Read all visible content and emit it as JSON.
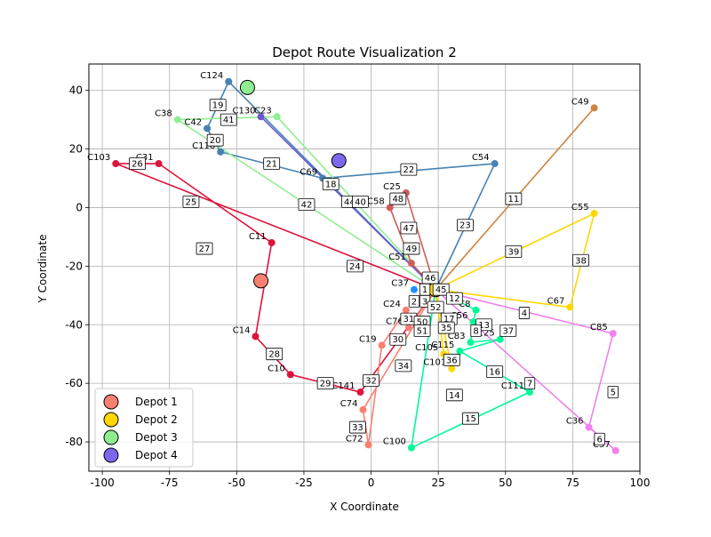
{
  "chart_data": {
    "type": "scatter",
    "title": "Depot Route Visualization 2",
    "xlabel": "X Coordinate",
    "ylabel": "Y Coordinate",
    "xlim": [
      -105,
      100
    ],
    "ylim": [
      -90,
      49
    ],
    "xticks": [
      -100,
      -75,
      -50,
      -25,
      0,
      25,
      50,
      75,
      100
    ],
    "yticks": [
      -80,
      -60,
      -40,
      -20,
      0,
      20,
      40
    ],
    "grid": true,
    "legend_position": "lower-left",
    "depots": [
      {
        "name": "Depot 1",
        "x": -41,
        "y": -25,
        "color": "#fa8072"
      },
      {
        "name": "Depot 2",
        "x": 24,
        "y": -28,
        "color": "#ffd700"
      },
      {
        "name": "Depot 3",
        "x": -46,
        "y": 41,
        "color": "#90ee90"
      },
      {
        "name": "Depot 4",
        "x": -12,
        "y": 16,
        "color": "#7b68ee"
      }
    ],
    "customers": [
      {
        "label": "C124",
        "x": -53,
        "y": 43,
        "color": "#4682b4"
      },
      {
        "label": "C42",
        "x": -61,
        "y": 27,
        "color": "#4682b4"
      },
      {
        "label": "C118",
        "x": -56,
        "y": 19,
        "color": "#4682b4"
      },
      {
        "label": "C69",
        "x": -18,
        "y": 10,
        "color": "#4682b4"
      },
      {
        "label": "C54",
        "x": 46,
        "y": 15,
        "color": "#4682b4"
      },
      {
        "label": "C37",
        "x": 16,
        "y": -28,
        "color": "#1e90ff"
      },
      {
        "label": "C130",
        "x": -41,
        "y": 31,
        "color": "#6a5acd"
      },
      {
        "label": "C38",
        "x": -72,
        "y": 30,
        "color": "#90ee90"
      },
      {
        "label": "C23",
        "x": -35,
        "y": 31,
        "color": "#90ee90"
      },
      {
        "label": "C49",
        "x": 83,
        "y": 34,
        "color": "#cd853f"
      },
      {
        "label": "C25",
        "x": 13,
        "y": 5,
        "color": "#cd5c5c"
      },
      {
        "label": "C58",
        "x": 7,
        "y": 0,
        "color": "#cd5c5c"
      },
      {
        "label": "C51",
        "x": 15,
        "y": -19,
        "color": "#cd5c5c"
      },
      {
        "label": "C55",
        "x": 83,
        "y": -2,
        "color": "#ffd700"
      },
      {
        "label": "C67",
        "x": 74,
        "y": -34,
        "color": "#ffd700"
      },
      {
        "label": "C103",
        "x": -95,
        "y": 15,
        "color": "#dc143c"
      },
      {
        "label": "C31",
        "x": -79,
        "y": 15,
        "color": "#dc143c"
      },
      {
        "label": "C11",
        "x": -37,
        "y": -12,
        "color": "#dc143c"
      },
      {
        "label": "C14",
        "x": -43,
        "y": -44,
        "color": "#dc143c"
      },
      {
        "label": "C10",
        "x": -30,
        "y": -57,
        "color": "#dc143c"
      },
      {
        "label": "C141",
        "x": -4,
        "y": -63,
        "color": "#dc143c"
      },
      {
        "label": "C74",
        "x": -3,
        "y": -69,
        "color": "#fa8072"
      },
      {
        "label": "C72",
        "x": -1,
        "y": -81,
        "color": "#fa8072"
      },
      {
        "label": "C19",
        "x": 4,
        "y": -47,
        "color": "#fa8072"
      },
      {
        "label": "C24",
        "x": 13,
        "y": -35,
        "color": "#fa8072"
      },
      {
        "label": "C76",
        "x": 14,
        "y": -41,
        "color": "#fa8072"
      },
      {
        "label": "C8",
        "x": 39,
        "y": -35,
        "color": "#00fa9a"
      },
      {
        "label": "C56",
        "x": 38,
        "y": -39,
        "color": "#00fa9a"
      },
      {
        "label": "C83",
        "x": 37,
        "y": -46,
        "color": "#00fa9a"
      },
      {
        "label": "C125",
        "x": 48,
        "y": -45,
        "color": "#00fa9a"
      },
      {
        "label": "C115",
        "x": 33,
        "y": -49,
        "color": "#00fa9a"
      },
      {
        "label": "C105",
        "x": 27,
        "y": -50,
        "color": "#ffd700"
      },
      {
        "label": "C101",
        "x": 30,
        "y": -55,
        "color": "#ffd700"
      },
      {
        "label": "C111",
        "x": 59,
        "y": -63,
        "color": "#00fa9a"
      },
      {
        "label": "C100",
        "x": 15,
        "y": -82,
        "color": "#00fa9a"
      },
      {
        "label": "C85",
        "x": 90,
        "y": -43,
        "color": "#ee82ee"
      },
      {
        "label": "C36",
        "x": 81,
        "y": -75,
        "color": "#ee82ee"
      },
      {
        "label": "C57",
        "x": 91,
        "y": -83,
        "color": "#ee82ee"
      }
    ],
    "routes": [
      {
        "color": "#4682b4",
        "points": [
          [
            24,
            -28
          ],
          [
            -53,
            43
          ],
          [
            -61,
            27
          ],
          [
            -56,
            19
          ],
          [
            -18,
            10
          ],
          [
            46,
            15
          ],
          [
            24,
            -28
          ]
        ]
      },
      {
        "color": "#90ee90",
        "points": [
          [
            24,
            -28
          ],
          [
            -72,
            30
          ],
          [
            -35,
            31
          ],
          [
            24,
            -28
          ]
        ]
      },
      {
        "color": "#6a5acd",
        "points": [
          [
            24,
            -28
          ],
          [
            -41,
            31
          ],
          [
            24,
            -28
          ]
        ]
      },
      {
        "color": "#cd853f",
        "points": [
          [
            24,
            -28
          ],
          [
            83,
            34
          ],
          [
            24,
            -28
          ]
        ]
      },
      {
        "color": "#cd5c5c",
        "points": [
          [
            24,
            -28
          ],
          [
            13,
            5
          ],
          [
            7,
            0
          ],
          [
            15,
            -19
          ],
          [
            24,
            -28
          ]
        ]
      },
      {
        "color": "#ffd700",
        "points": [
          [
            24,
            -28
          ],
          [
            83,
            -2
          ],
          [
            74,
            -34
          ],
          [
            24,
            -28
          ]
        ]
      },
      {
        "color": "#dc143c",
        "points": [
          [
            24,
            -28
          ],
          [
            -95,
            15
          ],
          [
            -79,
            15
          ],
          [
            -37,
            -12
          ],
          [
            -43,
            -44
          ],
          [
            -30,
            -57
          ],
          [
            -4,
            -63
          ],
          [
            24,
            -28
          ]
        ]
      },
      {
        "color": "#fa8072",
        "points": [
          [
            24,
            -28
          ],
          [
            -3,
            -69
          ],
          [
            -1,
            -81
          ],
          [
            4,
            -47
          ],
          [
            13,
            -35
          ],
          [
            14,
            -41
          ],
          [
            24,
            -28
          ]
        ]
      },
      {
        "color": "#00fa9a",
        "points": [
          [
            24,
            -28
          ],
          [
            39,
            -35
          ],
          [
            38,
            -39
          ],
          [
            37,
            -46
          ],
          [
            48,
            -45
          ],
          [
            33,
            -49
          ],
          [
            59,
            -63
          ],
          [
            15,
            -82
          ],
          [
            24,
            -28
          ]
        ]
      },
      {
        "color": "#ee82ee",
        "points": [
          [
            24,
            -28
          ],
          [
            90,
            -43
          ],
          [
            81,
            -75
          ],
          [
            91,
            -83
          ],
          [
            24,
            -28
          ]
        ]
      },
      {
        "color": "#ffd700",
        "points": [
          [
            24,
            -28
          ],
          [
            27,
            -50
          ],
          [
            30,
            -55
          ],
          [
            24,
            -28
          ]
        ]
      }
    ],
    "step_labels": [
      {
        "label": "19",
        "x": -57,
        "y": 35
      },
      {
        "label": "41",
        "x": -53,
        "y": 30
      },
      {
        "label": "20",
        "x": -58,
        "y": 23
      },
      {
        "label": "21",
        "x": -37,
        "y": 15
      },
      {
        "label": "22",
        "x": 14,
        "y": 13
      },
      {
        "label": "18",
        "x": -15,
        "y": 8
      },
      {
        "label": "44",
        "x": -8,
        "y": 2
      },
      {
        "label": "40",
        "x": -4,
        "y": 2
      },
      {
        "label": "42",
        "x": -24,
        "y": 1
      },
      {
        "label": "48",
        "x": 10,
        "y": 3
      },
      {
        "label": "47",
        "x": 14,
        "y": -7
      },
      {
        "label": "49",
        "x": 15,
        "y": -14
      },
      {
        "label": "23",
        "x": 35,
        "y": -6
      },
      {
        "label": "11",
        "x": 53,
        "y": 3
      },
      {
        "label": "39",
        "x": 53,
        "y": -15
      },
      {
        "label": "38",
        "x": 78,
        "y": -18
      },
      {
        "label": "26",
        "x": -87,
        "y": 15
      },
      {
        "label": "25",
        "x": -67,
        "y": 2
      },
      {
        "label": "27",
        "x": -62,
        "y": -14
      },
      {
        "label": "24",
        "x": -6,
        "y": -20
      },
      {
        "label": "46",
        "x": 22,
        "y": -24
      },
      {
        "label": "1",
        "x": 20,
        "y": -28
      },
      {
        "label": "45",
        "x": 26,
        "y": -28
      },
      {
        "label": "2",
        "x": 16,
        "y": -32
      },
      {
        "label": "3",
        "x": 20,
        "y": -32
      },
      {
        "label": "52",
        "x": 24,
        "y": -34
      },
      {
        "label": "12",
        "x": 31,
        "y": -31
      },
      {
        "label": "31",
        "x": 14,
        "y": -38
      },
      {
        "label": "50",
        "x": 19,
        "y": -39
      },
      {
        "label": "51",
        "x": 19,
        "y": -42
      },
      {
        "label": "17",
        "x": 29,
        "y": -38
      },
      {
        "label": "35",
        "x": 28,
        "y": -41
      },
      {
        "label": "13",
        "x": 42,
        "y": -40
      },
      {
        "label": "8",
        "x": 39,
        "y": -42
      },
      {
        "label": "4",
        "x": 57,
        "y": -36
      },
      {
        "label": "37",
        "x": 51,
        "y": -42
      },
      {
        "label": "30",
        "x": 10,
        "y": -45
      },
      {
        "label": "34",
        "x": 12,
        "y": -54
      },
      {
        "label": "36",
        "x": 30,
        "y": -52
      },
      {
        "label": "16",
        "x": 46,
        "y": -56
      },
      {
        "label": "29",
        "x": -17,
        "y": -60
      },
      {
        "label": "32",
        "x": 0,
        "y": -59
      },
      {
        "label": "14",
        "x": 31,
        "y": -64
      },
      {
        "label": "7",
        "x": 59,
        "y": -60
      },
      {
        "label": "5",
        "x": 90,
        "y": -63
      },
      {
        "label": "15",
        "x": 37,
        "y": -72
      },
      {
        "label": "33",
        "x": -5,
        "y": -75
      },
      {
        "label": "6",
        "x": 85,
        "y": -79
      },
      {
        "label": "28",
        "x": -36,
        "y": -50
      }
    ]
  }
}
